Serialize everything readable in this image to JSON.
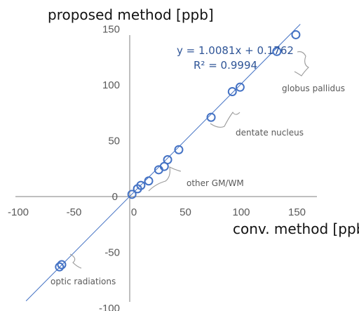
{
  "chart_data": {
    "type": "scatter",
    "title": "",
    "xlabel": "conv. method [ppb]",
    "ylabel": "proposed  method [ppb]",
    "xlim": [
      -100,
      150
    ],
    "ylim": [
      -100,
      150
    ],
    "x_ticks": [
      -100,
      -50,
      0,
      50,
      100,
      150
    ],
    "y_ticks": [
      -100,
      -50,
      0,
      50,
      100,
      150
    ],
    "grid": false,
    "series": [
      {
        "points": [
          {
            "x": -63,
            "y": -63
          },
          {
            "x": -61,
            "y": -61
          },
          {
            "x": 2,
            "y": 2
          },
          {
            "x": 7,
            "y": 7
          },
          {
            "x": 10,
            "y": 10
          },
          {
            "x": 17,
            "y": 14
          },
          {
            "x": 26,
            "y": 24
          },
          {
            "x": 31,
            "y": 27
          },
          {
            "x": 34,
            "y": 33
          },
          {
            "x": 44,
            "y": 42
          },
          {
            "x": 73,
            "y": 71
          },
          {
            "x": 92,
            "y": 94
          },
          {
            "x": 99,
            "y": 98
          },
          {
            "x": 132,
            "y": 130
          },
          {
            "x": 149,
            "y": 145
          }
        ]
      }
    ],
    "trendline": {
      "slope": 1.0081,
      "intercept": 0.1762,
      "equation": "y = 1.0081x + 0.1762",
      "r2": "R² = 0.9994"
    },
    "annotations": [
      {
        "text": "optic radiations"
      },
      {
        "text": "other GM/WM"
      },
      {
        "text": "dentate nucleus"
      },
      {
        "text": "globus pallidus"
      }
    ]
  }
}
